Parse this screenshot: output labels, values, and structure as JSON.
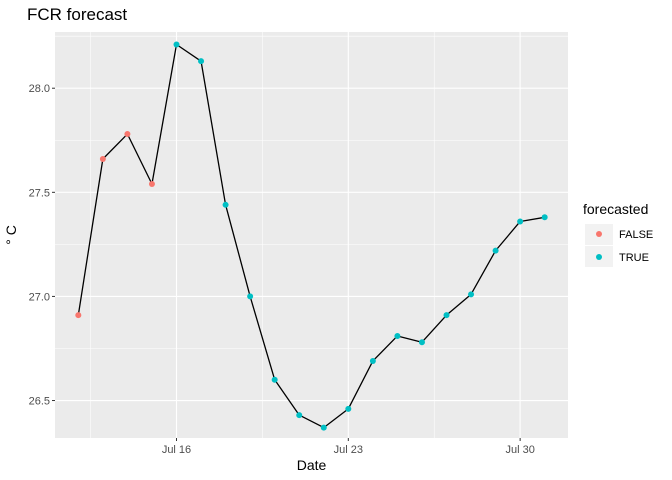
{
  "chart_data": {
    "type": "line",
    "title": "FCR forecast",
    "xlabel": "Date",
    "ylabel": "° C",
    "x_ticks": [
      "Jul 16",
      "Jul 23",
      "Jul 30"
    ],
    "y_ticks": [
      "26.5",
      "27.0",
      "27.5",
      "28.0"
    ],
    "ylim": [
      26.32,
      28.27
    ],
    "legend": {
      "title": "forecasted",
      "position": "right",
      "entries": [
        {
          "label": "FALSE",
          "color": "#F8766D"
        },
        {
          "label": "TRUE",
          "color": "#00BFC4"
        }
      ]
    },
    "grid": true,
    "points": [
      {
        "date": "2021-07-12",
        "y": 26.91,
        "forecasted": "FALSE"
      },
      {
        "date": "2021-07-13",
        "y": 27.66,
        "forecasted": "FALSE"
      },
      {
        "date": "2021-07-14",
        "y": 27.78,
        "forecasted": "FALSE"
      },
      {
        "date": "2021-07-15",
        "y": 27.54,
        "forecasted": "FALSE"
      },
      {
        "date": "2021-07-16",
        "y": 28.21,
        "forecasted": "TRUE"
      },
      {
        "date": "2021-07-17",
        "y": 28.13,
        "forecasted": "TRUE"
      },
      {
        "date": "2021-07-18",
        "y": 27.44,
        "forecasted": "TRUE"
      },
      {
        "date": "2021-07-19",
        "y": 27.0,
        "forecasted": "TRUE"
      },
      {
        "date": "2021-07-20",
        "y": 26.6,
        "forecasted": "TRUE"
      },
      {
        "date": "2021-07-21",
        "y": 26.43,
        "forecasted": "TRUE"
      },
      {
        "date": "2021-07-22",
        "y": 26.37,
        "forecasted": "TRUE"
      },
      {
        "date": "2021-07-23",
        "y": 26.46,
        "forecasted": "TRUE"
      },
      {
        "date": "2021-07-24",
        "y": 26.69,
        "forecasted": "TRUE"
      },
      {
        "date": "2021-07-25",
        "y": 26.81,
        "forecasted": "TRUE"
      },
      {
        "date": "2021-07-26",
        "y": 26.78,
        "forecasted": "TRUE"
      },
      {
        "date": "2021-07-27",
        "y": 26.91,
        "forecasted": "TRUE"
      },
      {
        "date": "2021-07-28",
        "y": 27.01,
        "forecasted": "TRUE"
      },
      {
        "date": "2021-07-29",
        "y": 27.22,
        "forecasted": "TRUE"
      },
      {
        "date": "2021-07-30",
        "y": 27.36,
        "forecasted": "TRUE"
      },
      {
        "date": "2021-07-31",
        "y": 27.38,
        "forecasted": "TRUE"
      }
    ]
  }
}
